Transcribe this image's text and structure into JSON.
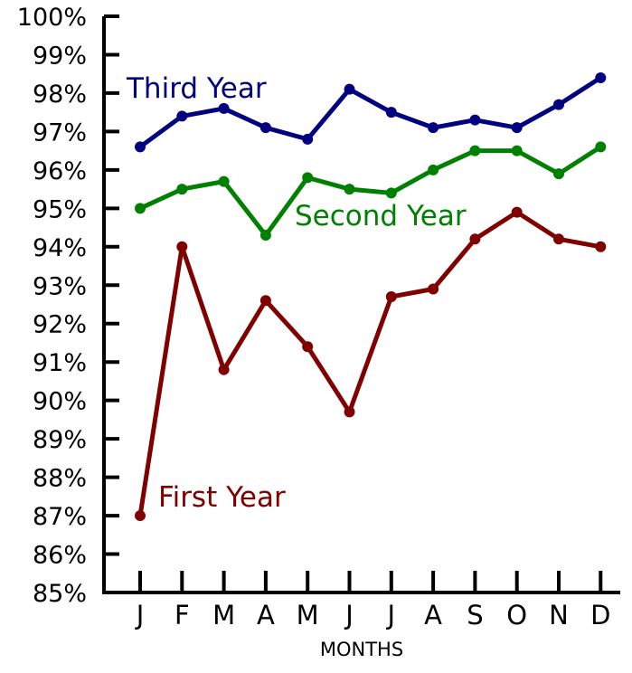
{
  "chart_data": {
    "type": "line",
    "categories": [
      "J",
      "F",
      "M",
      "A",
      "M",
      "J",
      "J",
      "A",
      "S",
      "O",
      "N",
      "D"
    ],
    "xlabel": "MONTHS",
    "ylabel": "",
    "ylim": [
      85,
      100
    ],
    "yticks": [
      "85%",
      "86%",
      "87%",
      "88%",
      "89%",
      "90%",
      "91%",
      "92%",
      "93%",
      "94%",
      "95%",
      "96%",
      "97%",
      "98%",
      "99%",
      "100%"
    ],
    "grid": false,
    "series": [
      {
        "name": "First Year",
        "color": "#800000",
        "values": [
          87.0,
          94.0,
          90.8,
          92.6,
          91.4,
          89.7,
          92.7,
          92.9,
          94.2,
          94.9,
          94.2,
          94.0
        ]
      },
      {
        "name": "Second Year",
        "color": "#008000",
        "values": [
          95.0,
          95.5,
          95.7,
          94.3,
          95.8,
          95.5,
          95.4,
          96.0,
          96.5,
          96.5,
          95.9,
          96.6
        ]
      },
      {
        "name": "Third Year",
        "color": "#000080",
        "values": [
          96.6,
          97.4,
          97.6,
          97.1,
          96.8,
          98.1,
          97.5,
          97.1,
          97.3,
          97.1,
          97.7,
          98.4
        ]
      }
    ]
  }
}
